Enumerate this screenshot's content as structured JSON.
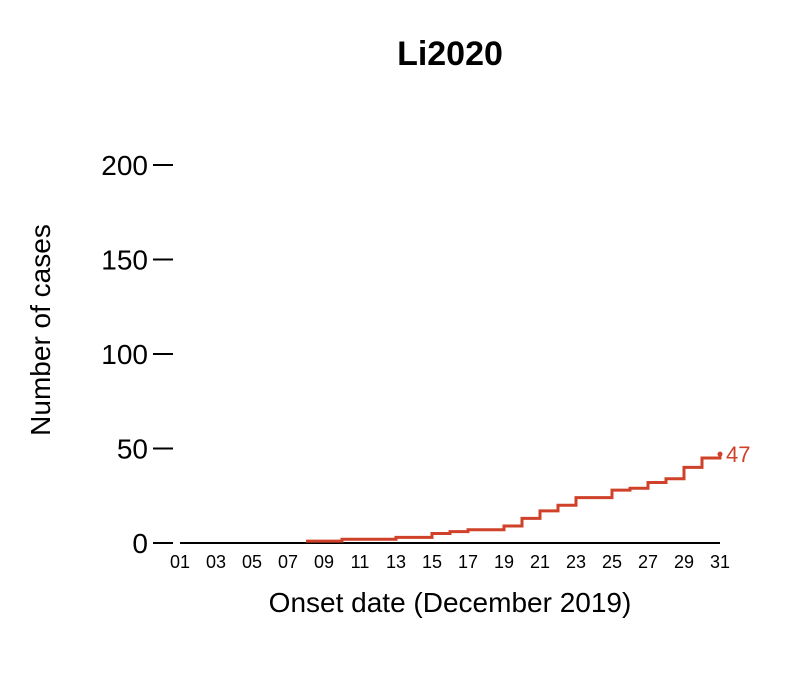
{
  "chart_data": {
    "type": "line",
    "step": true,
    "title": "Li2020",
    "xlabel": "Onset date (December 2019)",
    "ylabel": "Number of cases",
    "x": [
      1,
      2,
      3,
      4,
      5,
      6,
      7,
      8,
      9,
      10,
      11,
      12,
      13,
      14,
      15,
      16,
      17,
      18,
      19,
      20,
      21,
      22,
      23,
      24,
      25,
      26,
      27,
      28,
      29,
      30,
      31
    ],
    "xticks": [
      1,
      3,
      5,
      7,
      9,
      11,
      13,
      15,
      17,
      19,
      21,
      23,
      25,
      27,
      29,
      31
    ],
    "xtick_labels": [
      "01",
      "03",
      "05",
      "07",
      "09",
      "11",
      "13",
      "15",
      "17",
      "19",
      "21",
      "23",
      "25",
      "27",
      "29",
      "31"
    ],
    "xlim": [
      1,
      31
    ],
    "yticks": [
      0,
      50,
      100,
      150,
      200
    ],
    "ylim": [
      0,
      200
    ],
    "grid": false,
    "series": [
      {
        "start_x": 8,
        "x": [
          8,
          9,
          10,
          11,
          12,
          13,
          14,
          15,
          16,
          17,
          18,
          19,
          20,
          21,
          22,
          23,
          24,
          25,
          26,
          27,
          28,
          29,
          30,
          31
        ],
        "values": [
          1,
          1,
          2,
          2,
          2,
          3,
          3,
          5,
          6,
          7,
          7,
          9,
          13,
          17,
          20,
          24,
          24,
          28,
          29,
          32,
          34,
          40,
          45,
          47
        ],
        "end_label": "47",
        "color": "#d0412a"
      }
    ]
  }
}
